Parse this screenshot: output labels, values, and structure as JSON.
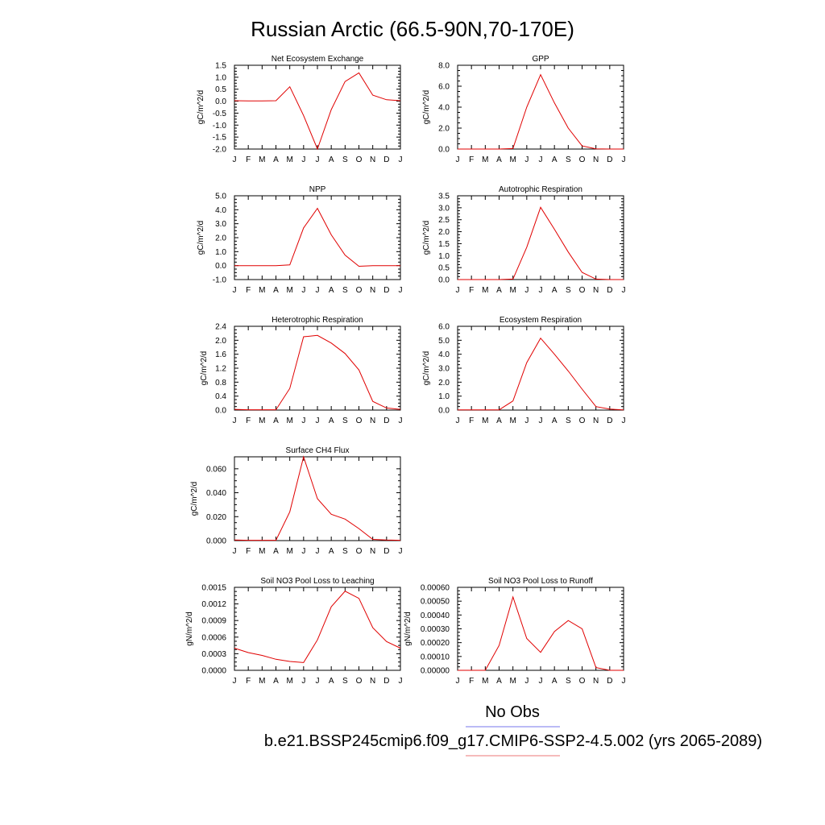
{
  "title": "Russian Arctic (66.5-90N,70-170E)",
  "legend": {
    "no_obs_label": "No Obs",
    "case_label": "b.e21.BSSP245cmip6.f09_g17.CMIP6-SSP2-4.5.002 (yrs 2065-2089)",
    "obs_line_color": "#7777ee",
    "case_line_color": "#ee7777"
  },
  "colors": {
    "series": "#e00000",
    "axis": "#000000"
  },
  "chart_data": [
    {
      "id": "nee",
      "type": "line",
      "title": "Net Ecosystem Exchange",
      "ylabel": "gC/m^2/d",
      "categories": [
        "J",
        "F",
        "M",
        "A",
        "M",
        "J",
        "J",
        "A",
        "S",
        "O",
        "N",
        "D",
        "J"
      ],
      "ylim": [
        -2.0,
        1.5
      ],
      "yticks": [
        "-2.0",
        "-1.5",
        "-1.0",
        "-0.5",
        "0.0",
        "0.5",
        "1.0",
        "1.5"
      ],
      "yticks_val": [
        -2.0,
        -1.5,
        -1.0,
        -0.5,
        0.0,
        0.5,
        1.0,
        1.5
      ],
      "values": [
        0.02,
        0.01,
        0.01,
        0.02,
        0.6,
        -0.6,
        -2.0,
        -0.35,
        0.82,
        1.18,
        0.25,
        0.06,
        0.02
      ]
    },
    {
      "id": "gpp",
      "type": "line",
      "title": "GPP",
      "ylabel": "gC/m^2/d",
      "categories": [
        "J",
        "F",
        "M",
        "A",
        "M",
        "J",
        "J",
        "A",
        "S",
        "O",
        "N",
        "D",
        "J"
      ],
      "ylim": [
        0.0,
        8.0
      ],
      "yticks": [
        "0.0",
        "2.0",
        "4.0",
        "6.0",
        "8.0"
      ],
      "yticks_val": [
        0,
        2,
        4,
        6,
        8
      ],
      "values": [
        0,
        0,
        0,
        0,
        0.05,
        4.0,
        7.1,
        4.4,
        2.0,
        0.3,
        0.02,
        0,
        0
      ]
    },
    {
      "id": "npp",
      "type": "line",
      "title": "NPP",
      "ylabel": "gC/m^2/d",
      "categories": [
        "J",
        "F",
        "M",
        "A",
        "M",
        "J",
        "J",
        "A",
        "S",
        "O",
        "N",
        "D",
        "J"
      ],
      "ylim": [
        -1.0,
        5.0
      ],
      "yticks": [
        "-1.0",
        "0.0",
        "1.0",
        "2.0",
        "3.0",
        "4.0",
        "5.0"
      ],
      "yticks_val": [
        -1,
        0,
        1,
        2,
        3,
        4,
        5
      ],
      "values": [
        0,
        0,
        0,
        0,
        0.05,
        2.7,
        4.1,
        2.2,
        0.75,
        -0.05,
        0,
        0,
        0
      ]
    },
    {
      "id": "ar",
      "type": "line",
      "title": "Autotrophic Respiration",
      "ylabel": "gC/m^2/d",
      "categories": [
        "J",
        "F",
        "M",
        "A",
        "M",
        "J",
        "J",
        "A",
        "S",
        "O",
        "N",
        "D",
        "J"
      ],
      "ylim": [
        0.0,
        3.5
      ],
      "yticks": [
        "0.0",
        "0.5",
        "1.0",
        "1.5",
        "2.0",
        "2.5",
        "3.0",
        "3.5"
      ],
      "yticks_val": [
        0,
        0.5,
        1,
        1.5,
        2,
        2.5,
        3,
        3.5
      ],
      "values": [
        0,
        0,
        0,
        0,
        0.02,
        1.35,
        3.02,
        2.1,
        1.15,
        0.3,
        0.02,
        0,
        0
      ]
    },
    {
      "id": "hr",
      "type": "line",
      "title": "Heterotrophic Respiration",
      "ylabel": "gC/m^2/d",
      "categories": [
        "J",
        "F",
        "M",
        "A",
        "M",
        "J",
        "J",
        "A",
        "S",
        "O",
        "N",
        "D",
        "J"
      ],
      "ylim": [
        0.0,
        2.4
      ],
      "yticks": [
        "0.0",
        "0.4",
        "0.8",
        "1.2",
        "1.6",
        "2.0",
        "2.4"
      ],
      "yticks_val": [
        0,
        0.4,
        0.8,
        1.2,
        1.6,
        2.0,
        2.4
      ],
      "values": [
        0.02,
        0.01,
        0.01,
        0.01,
        0.62,
        2.1,
        2.14,
        1.92,
        1.62,
        1.15,
        0.25,
        0.06,
        0.02
      ]
    },
    {
      "id": "er",
      "type": "line",
      "title": "Ecosystem Respiration",
      "ylabel": "gC/m^2/d",
      "categories": [
        "J",
        "F",
        "M",
        "A",
        "M",
        "J",
        "J",
        "A",
        "S",
        "O",
        "N",
        "D",
        "J"
      ],
      "ylim": [
        0.0,
        6.0
      ],
      "yticks": [
        "0.0",
        "1.0",
        "2.0",
        "3.0",
        "4.0",
        "5.0",
        "6.0"
      ],
      "yticks_val": [
        0,
        1,
        2,
        3,
        4,
        5,
        6
      ],
      "values": [
        0.02,
        0.02,
        0.02,
        0.02,
        0.65,
        3.4,
        5.15,
        4.0,
        2.8,
        1.5,
        0.25,
        0.07,
        0.02
      ]
    },
    {
      "id": "ch4",
      "type": "line",
      "title": "Surface CH4 Flux",
      "ylabel": "gC/m^2/d",
      "categories": [
        "J",
        "F",
        "M",
        "A",
        "M",
        "J",
        "J",
        "A",
        "S",
        "O",
        "N",
        "D",
        "J"
      ],
      "ylim": [
        0.0,
        0.07
      ],
      "yticks": [
        "0.000",
        "0.020",
        "0.040",
        "0.060"
      ],
      "yticks_val": [
        0,
        0.02,
        0.04,
        0.06
      ],
      "values": [
        0.0005,
        0.0003,
        0.0003,
        0.0003,
        0.024,
        0.07,
        0.035,
        0.022,
        0.018,
        0.01,
        0.001,
        0.0005,
        0.0003
      ]
    },
    {
      "id": "leach",
      "type": "line",
      "title": "Soil NO3 Pool Loss to Leaching",
      "ylabel": "gN/m^2/d",
      "categories": [
        "J",
        "F",
        "M",
        "A",
        "M",
        "J",
        "J",
        "A",
        "S",
        "O",
        "N",
        "D",
        "J"
      ],
      "ylim": [
        0.0,
        0.0015
      ],
      "yticks": [
        "0.0000",
        "0.0003",
        "0.0006",
        "0.0009",
        "0.0012",
        "0.0015"
      ],
      "yticks_val": [
        0,
        0.0003,
        0.0006,
        0.0009,
        0.0012,
        0.0015
      ],
      "values": [
        0.0004,
        0.00032,
        0.00027,
        0.0002,
        0.00016,
        0.00014,
        0.00055,
        0.00115,
        0.00143,
        0.0013,
        0.00077,
        0.00052,
        0.0004
      ]
    },
    {
      "id": "runoff",
      "type": "line",
      "title": "Soil NO3 Pool Loss to Runoff",
      "ylabel": "gN/m^2/d",
      "categories": [
        "J",
        "F",
        "M",
        "A",
        "M",
        "J",
        "J",
        "A",
        "S",
        "O",
        "N",
        "D",
        "J"
      ],
      "ylim": [
        0.0,
        0.0006
      ],
      "yticks": [
        "0.00000",
        "0.00010",
        "0.00020",
        "0.00030",
        "0.00040",
        "0.00050",
        "0.00060"
      ],
      "yticks_val": [
        0,
        0.0001,
        0.0002,
        0.0003,
        0.0004,
        0.0005,
        0.0006
      ],
      "values": [
        0,
        0,
        0,
        0.00018,
        0.00053,
        0.00023,
        0.00013,
        0.00028,
        0.00036,
        0.0003,
        2e-05,
        0,
        0
      ]
    }
  ]
}
